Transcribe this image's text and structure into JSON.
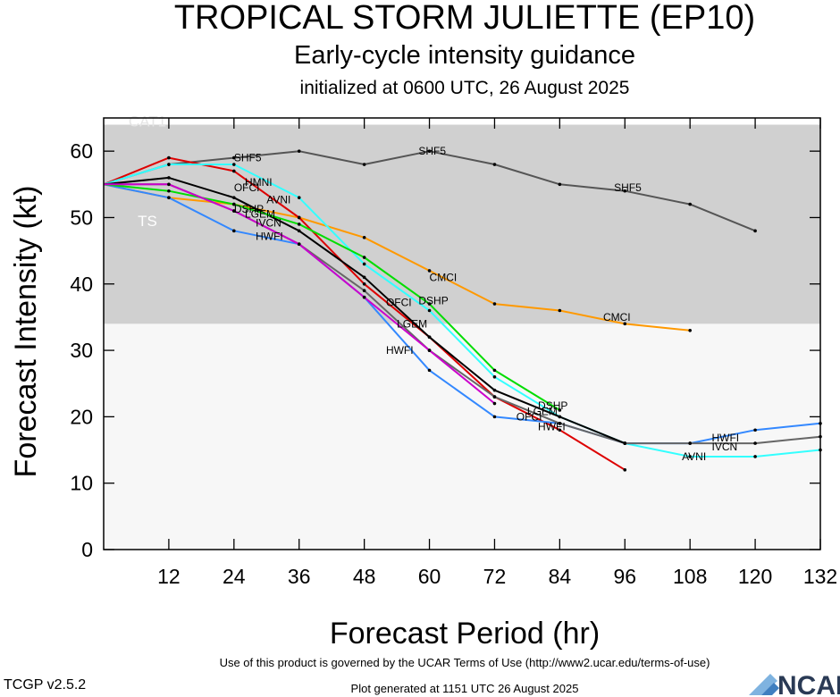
{
  "header": {
    "title": "TROPICAL STORM JULIETTE (EP10)",
    "subtitle": "Early-cycle intensity guidance",
    "subtitle2": "initialized at 0600 UTC, 26 August 2025"
  },
  "footer": {
    "terms": "Use of this product is governed by the UCAR Terms of Use (http://www2.ucar.edu/terms-of-use)",
    "generated": "Plot generated at 1151 UTC   26 August 2025",
    "version": "TCGP v2.5.2",
    "logo": "NCAR"
  },
  "chart_data": {
    "type": "line",
    "xlabel": "Forecast Period (hr)",
    "ylabel": "Forecast Intensity (kt)",
    "xlim": [
      0,
      132
    ],
    "ylim": [
      0,
      65
    ],
    "xticks": [
      12,
      24,
      36,
      48,
      60,
      72,
      84,
      96,
      108,
      120,
      132
    ],
    "yticks": [
      0,
      10,
      20,
      30,
      40,
      50,
      60
    ],
    "bands": [
      {
        "label": "TS",
        "from": 34,
        "to": 64,
        "color": "#d0d0d0"
      },
      {
        "label": "CAT1",
        "from": 64,
        "to": 65,
        "color": "#ffffff"
      }
    ],
    "below_band_color": "#f7f7f7",
    "series": [
      {
        "name": "SHF5",
        "color": "#555555",
        "x": [
          0,
          12,
          24,
          36,
          48,
          60,
          72,
          84,
          96,
          108,
          120
        ],
        "y": [
          55,
          58,
          59,
          60,
          58,
          60,
          58,
          55,
          54,
          52,
          48
        ],
        "labels": [
          [
            24,
            59
          ],
          [
            58,
            60
          ],
          [
            94,
            54.5
          ]
        ]
      },
      {
        "name": "CMCI",
        "color": "#ff9900",
        "x": [
          0,
          12,
          24,
          36,
          48,
          60,
          72,
          84,
          96,
          108
        ],
        "y": [
          55,
          53,
          52,
          50,
          47,
          42,
          37,
          36,
          34,
          33
        ],
        "labels": [
          [
            60,
            41
          ],
          [
            92,
            35
          ]
        ]
      },
      {
        "name": "HMNI",
        "color": "#dd0000",
        "x": [
          0,
          12,
          24,
          36,
          48,
          60,
          72,
          84,
          96
        ],
        "y": [
          55,
          59,
          57,
          50,
          40,
          32,
          23,
          18,
          12
        ],
        "labels": [
          [
            26,
            55.3
          ]
        ]
      },
      {
        "name": "AVNI",
        "color": "#33ffff",
        "x": [
          0,
          12,
          24,
          36,
          48,
          60,
          72,
          84,
          96,
          108,
          120,
          132
        ],
        "y": [
          55,
          58,
          58,
          53,
          43,
          36,
          26,
          20,
          16,
          14,
          14,
          15
        ],
        "labels": [
          [
            30,
            52.7
          ],
          [
            106.5,
            14
          ]
        ]
      },
      {
        "name": "HWFI",
        "color": "#3388ff",
        "x": [
          0,
          12,
          24,
          36,
          48,
          60,
          72,
          84,
          96,
          108,
          120,
          132
        ],
        "y": [
          55,
          53,
          48,
          46,
          38,
          27,
          20,
          19,
          16,
          16,
          18,
          19
        ],
        "labels": [
          [
            28,
            47.2
          ],
          [
            52,
            30
          ],
          [
            80,
            18.5
          ],
          [
            112,
            16.8
          ]
        ]
      },
      {
        "name": "IVCN",
        "color": "#666666",
        "x": [
          0,
          12,
          24,
          36,
          48,
          60,
          72,
          84,
          96,
          108,
          120,
          132
        ],
        "y": [
          55,
          55,
          51,
          46,
          39,
          30,
          23,
          19,
          16,
          16,
          16,
          17
        ],
        "labels": [
          [
            28,
            49.2
          ],
          [
            112,
            15.5
          ]
        ]
      },
      {
        "name": "OFCI",
        "color": "#000000",
        "x": [
          0,
          12,
          24,
          36,
          48,
          60,
          72,
          84,
          96
        ],
        "y": [
          55,
          56,
          53,
          48,
          41,
          32,
          24,
          20,
          16
        ],
        "labels": [
          [
            24,
            54.5
          ],
          [
            52,
            37.2
          ],
          [
            76,
            20
          ]
        ]
      },
      {
        "name": "DSHP",
        "color": "#00dd00",
        "x": [
          0,
          12,
          24,
          36,
          48,
          60,
          72,
          84
        ],
        "y": [
          55,
          54,
          52,
          49,
          44,
          37,
          27,
          21
        ],
        "labels": [
          [
            24,
            51.3
          ],
          [
            58,
            37.5
          ],
          [
            80,
            21.7
          ]
        ]
      },
      {
        "name": "LGEM",
        "color": "#cc00cc",
        "x": [
          0,
          12,
          24,
          36,
          48,
          60,
          72
        ],
        "y": [
          55,
          55,
          51,
          46,
          38,
          30,
          22
        ],
        "labels": [
          [
            26,
            50.5
          ],
          [
            54,
            34
          ],
          [
            78,
            20.8
          ]
        ]
      }
    ]
  }
}
